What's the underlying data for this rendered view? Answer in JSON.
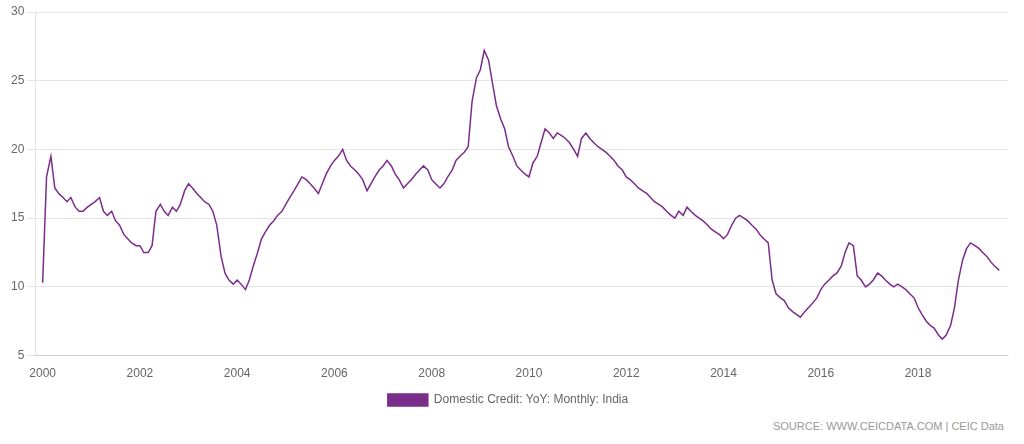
{
  "chart_data": {
    "type": "line",
    "x": [
      2000.0,
      2000.08,
      2000.17,
      2000.25,
      2000.33,
      2000.42,
      2000.5,
      2000.58,
      2000.67,
      2000.75,
      2000.83,
      2000.92,
      2001.0,
      2001.08,
      2001.17,
      2001.25,
      2001.33,
      2001.42,
      2001.5,
      2001.58,
      2001.67,
      2001.75,
      2001.83,
      2001.92,
      2002.0,
      2002.08,
      2002.17,
      2002.25,
      2002.33,
      2002.42,
      2002.5,
      2002.58,
      2002.67,
      2002.75,
      2002.83,
      2002.92,
      2003.0,
      2003.08,
      2003.17,
      2003.25,
      2003.33,
      2003.42,
      2003.5,
      2003.58,
      2003.67,
      2003.75,
      2003.83,
      2003.92,
      2004.0,
      2004.08,
      2004.17,
      2004.25,
      2004.33,
      2004.42,
      2004.5,
      2004.58,
      2004.67,
      2004.75,
      2004.83,
      2004.92,
      2005.0,
      2005.08,
      2005.17,
      2005.25,
      2005.33,
      2005.42,
      2005.5,
      2005.58,
      2005.67,
      2005.75,
      2005.83,
      2005.92,
      2006.0,
      2006.08,
      2006.17,
      2006.25,
      2006.33,
      2006.42,
      2006.5,
      2006.58,
      2006.67,
      2006.75,
      2006.83,
      2006.92,
      2007.0,
      2007.08,
      2007.17,
      2007.25,
      2007.33,
      2007.42,
      2007.5,
      2007.58,
      2007.67,
      2007.75,
      2007.83,
      2007.92,
      2008.0,
      2008.08,
      2008.17,
      2008.25,
      2008.33,
      2008.42,
      2008.5,
      2008.58,
      2008.67,
      2008.75,
      2008.83,
      2008.92,
      2009.0,
      2009.08,
      2009.17,
      2009.25,
      2009.33,
      2009.42,
      2009.5,
      2009.58,
      2009.67,
      2009.75,
      2009.83,
      2009.92,
      2010.0,
      2010.08,
      2010.17,
      2010.25,
      2010.33,
      2010.42,
      2010.5,
      2010.58,
      2010.67,
      2010.75,
      2010.83,
      2010.92,
      2011.0,
      2011.08,
      2011.17,
      2011.25,
      2011.33,
      2011.42,
      2011.5,
      2011.58,
      2011.67,
      2011.75,
      2011.83,
      2011.92,
      2012.0,
      2012.08,
      2012.17,
      2012.25,
      2012.33,
      2012.42,
      2012.5,
      2012.58,
      2012.67,
      2012.75,
      2012.83,
      2012.92,
      2013.0,
      2013.08,
      2013.17,
      2013.25,
      2013.33,
      2013.42,
      2013.5,
      2013.58,
      2013.67,
      2013.75,
      2013.83,
      2013.92,
      2014.0,
      2014.08,
      2014.17,
      2014.25,
      2014.33,
      2014.42,
      2014.5,
      2014.58,
      2014.67,
      2014.75,
      2014.83,
      2014.92,
      2015.0,
      2015.08,
      2015.17,
      2015.25,
      2015.33,
      2015.42,
      2015.5,
      2015.58,
      2015.67,
      2015.75,
      2015.83,
      2015.92,
      2016.0,
      2016.08,
      2016.17,
      2016.25,
      2016.33,
      2016.42,
      2016.5,
      2016.58,
      2016.67,
      2016.75,
      2016.83,
      2016.92,
      2017.0,
      2017.08,
      2017.17,
      2017.25,
      2017.33,
      2017.42,
      2017.5,
      2017.58,
      2017.67,
      2017.75,
      2017.83,
      2017.92,
      2018.0,
      2018.08,
      2018.17,
      2018.25,
      2018.33,
      2018.42,
      2018.5,
      2018.58,
      2018.67,
      2018.75,
      2018.83,
      2018.92,
      2019.0,
      2019.08,
      2019.17,
      2019.25,
      2019.33,
      2019.42,
      2019.5,
      2019.58,
      2019.67
    ],
    "series": [
      {
        "name": "Domestic Credit: YoY: Monthly: India",
        "color": "#7B2D8B",
        "values": [
          10.3,
          18.0,
          19.5,
          17.2,
          16.8,
          16.5,
          16.2,
          16.5,
          15.8,
          15.5,
          15.5,
          15.8,
          16.0,
          16.2,
          16.5,
          15.5,
          15.2,
          15.5,
          14.8,
          14.5,
          13.8,
          13.5,
          13.2,
          13.0,
          13.0,
          12.5,
          12.5,
          13.0,
          15.5,
          16.0,
          15.5,
          15.2,
          15.8,
          15.5,
          16.0,
          17.0,
          17.5,
          17.2,
          16.8,
          16.5,
          16.2,
          16.0,
          15.5,
          14.5,
          12.2,
          11.0,
          10.5,
          10.2,
          10.5,
          10.2,
          9.8,
          10.5,
          11.5,
          12.5,
          13.5,
          14.0,
          14.5,
          14.8,
          15.2,
          15.5,
          16.0,
          16.5,
          17.0,
          17.5,
          18.0,
          17.8,
          17.5,
          17.2,
          16.8,
          17.5,
          18.2,
          18.8,
          19.2,
          19.5,
          20.0,
          19.2,
          18.8,
          18.5,
          18.2,
          17.8,
          17.0,
          17.5,
          18.0,
          18.5,
          18.8,
          19.2,
          18.8,
          18.2,
          17.8,
          17.2,
          17.5,
          17.8,
          18.2,
          18.5,
          18.8,
          18.5,
          17.8,
          17.5,
          17.2,
          17.5,
          18.0,
          18.5,
          19.2,
          19.5,
          19.8,
          20.2,
          23.5,
          25.2,
          25.8,
          27.2,
          26.5,
          24.8,
          23.2,
          22.2,
          21.5,
          20.2,
          19.5,
          18.8,
          18.5,
          18.2,
          18.0,
          19.0,
          19.5,
          20.5,
          21.5,
          21.2,
          20.8,
          21.2,
          21.0,
          20.8,
          20.5,
          20.0,
          19.5,
          20.8,
          21.2,
          20.8,
          20.5,
          20.2,
          20.0,
          19.8,
          19.5,
          19.2,
          18.8,
          18.5,
          18.0,
          17.8,
          17.5,
          17.2,
          17.0,
          16.8,
          16.5,
          16.2,
          16.0,
          15.8,
          15.5,
          15.2,
          15.0,
          15.5,
          15.2,
          15.8,
          15.5,
          15.2,
          15.0,
          14.8,
          14.5,
          14.2,
          14.0,
          13.8,
          13.5,
          13.8,
          14.5,
          15.0,
          15.2,
          15.0,
          14.8,
          14.5,
          14.2,
          13.8,
          13.5,
          13.2,
          10.5,
          9.5,
          9.2,
          9.0,
          8.5,
          8.2,
          8.0,
          7.8,
          8.2,
          8.5,
          8.8,
          9.2,
          9.8,
          10.2,
          10.5,
          10.8,
          11.0,
          11.5,
          12.5,
          13.2,
          13.0,
          10.8,
          10.5,
          10.0,
          10.2,
          10.5,
          11.0,
          10.8,
          10.5,
          10.2,
          10.0,
          10.2,
          10.0,
          9.8,
          9.5,
          9.2,
          8.5,
          8.0,
          7.5,
          7.2,
          7.0,
          6.5,
          6.2,
          6.5,
          7.2,
          8.5,
          10.5,
          12.0,
          12.8,
          13.2,
          13.0,
          12.8,
          12.5,
          12.2,
          11.8,
          11.5,
          11.2
        ]
      }
    ],
    "xlim": [
      1999.85,
      2019.85
    ],
    "xticks": [
      2000,
      2002,
      2004,
      2006,
      2008,
      2010,
      2012,
      2014,
      2016,
      2018
    ],
    "ylim": [
      5,
      30
    ],
    "yticks": [
      5,
      10,
      15,
      20,
      25,
      30
    ],
    "grid": "y",
    "legend": "bottom",
    "annotations": [
      "SOURCE: WWW.CEICDATA.COM | CEIC Data"
    ]
  }
}
